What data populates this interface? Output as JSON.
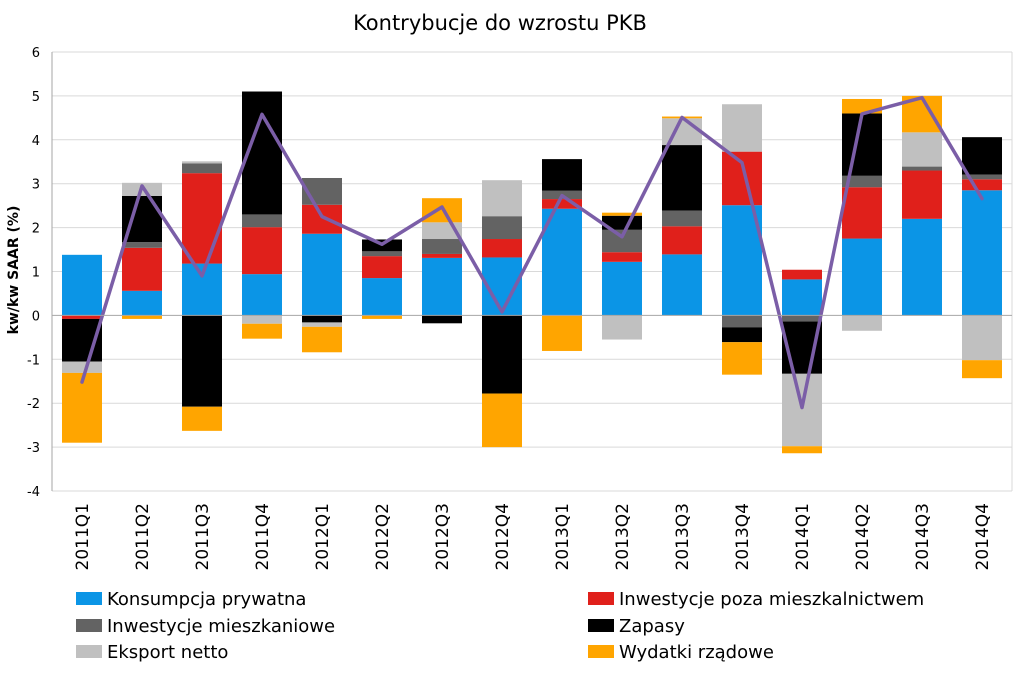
{
  "chart_data": {
    "type": "bar",
    "stacked": true,
    "title": "Kontrybucje do wzrostu PKB",
    "ylabel": "kw/kw SAAR (%)",
    "xlabel": "",
    "ylim": [
      -4,
      6
    ],
    "yticks": [
      -4,
      -3,
      -2,
      -1,
      0,
      1,
      2,
      3,
      4,
      5,
      6
    ],
    "grid": true,
    "legend_position": "bottom",
    "categories": [
      "2011Q1",
      "2011Q2",
      "2011Q3",
      "2011Q4",
      "2012Q1",
      "2012Q2",
      "2012Q3",
      "2012Q4",
      "2013Q1",
      "2013Q2",
      "2013Q3",
      "2013Q4",
      "2014Q1",
      "2014Q2",
      "2014Q3",
      "2014Q4"
    ],
    "series": [
      {
        "name": "Konsumpcja prywatna",
        "color": "#0b95e6",
        "values": [
          1.38,
          0.56,
          1.18,
          0.94,
          1.86,
          0.85,
          1.31,
          1.32,
          2.43,
          1.22,
          1.39,
          2.51,
          0.82,
          1.75,
          2.2,
          2.85
        ]
      },
      {
        "name": "Inwestycje poza mieszkalnictwem",
        "color": "#e0201b",
        "values": [
          -0.08,
          0.98,
          2.06,
          1.07,
          0.66,
          0.5,
          0.09,
          0.42,
          0.22,
          0.22,
          0.64,
          1.22,
          0.22,
          1.17,
          1.1,
          0.25
        ]
      },
      {
        "name": "Inwestycje mieszkaniowe",
        "color": "#636363",
        "values": [
          0.0,
          0.13,
          0.22,
          0.29,
          0.61,
          0.11,
          0.34,
          0.52,
          0.19,
          0.51,
          0.36,
          -0.27,
          -0.14,
          0.26,
          0.09,
          0.11
        ]
      },
      {
        "name": "Zapasy",
        "color": "#000000",
        "values": [
          -0.97,
          1.05,
          -2.08,
          2.8,
          -0.16,
          0.27,
          -0.18,
          -1.78,
          0.72,
          0.32,
          1.49,
          -0.34,
          -1.19,
          1.42,
          0.0,
          0.85
        ]
      },
      {
        "name": "Eksport netto",
        "color": "#c0c0c0",
        "values": [
          -0.26,
          0.3,
          0.05,
          -0.19,
          -0.1,
          0.0,
          0.38,
          0.82,
          0.0,
          -0.55,
          0.61,
          1.08,
          -1.65,
          -0.35,
          0.78,
          -1.02
        ]
      },
      {
        "name": "Wydatki rządowe",
        "color": "#ffa500",
        "values": [
          -1.59,
          -0.08,
          -0.55,
          -0.34,
          -0.58,
          -0.08,
          0.55,
          -1.22,
          -0.81,
          0.07,
          0.04,
          -0.74,
          -0.16,
          0.33,
          0.83,
          -0.41
        ]
      }
    ],
    "line": {
      "name": "PKB",
      "color": "#7b5ea7",
      "values": [
        -1.52,
        2.95,
        0.9,
        4.58,
        2.25,
        1.62,
        2.47,
        0.08,
        2.73,
        1.79,
        4.51,
        3.48,
        -2.1,
        4.59,
        4.96,
        2.66
      ]
    }
  }
}
